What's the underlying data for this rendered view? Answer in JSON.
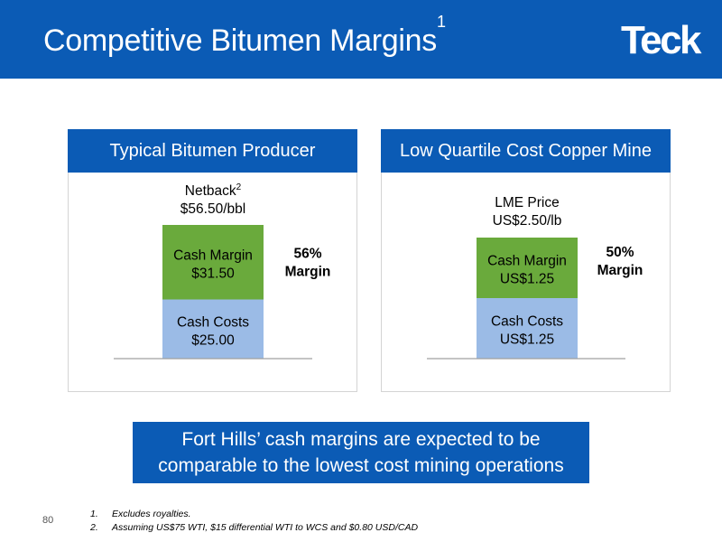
{
  "header": {
    "title": "Competitive Bitumen Margins",
    "title_superscript": "1",
    "logo_text": "Teck",
    "bg_color": "#0b5bb5"
  },
  "panels": [
    {
      "title": "Typical Bitumen Producer",
      "total_label_main": "Netback",
      "total_label_superscript": "2",
      "total_value_label": "$56.50/bbl",
      "margin_pct": "56%",
      "margin_word": "Margin"
    },
    {
      "title": "Low Quartile Cost Copper Mine",
      "total_label_main": "LME Price",
      "total_label_superscript": "",
      "total_value_label": "US$2.50/lb",
      "margin_pct": "50%",
      "margin_word": "Margin"
    }
  ],
  "chart_data": [
    {
      "type": "bar",
      "stacked": true,
      "title": "Typical Bitumen Producer",
      "categories": [
        "Typical Bitumen Producer"
      ],
      "series": [
        {
          "name": "Cash Costs",
          "label_lines": [
            "Cash Costs",
            "$25.00"
          ],
          "values": [
            25.0
          ],
          "color": "#9bbbe6"
        },
        {
          "name": "Cash Margin",
          "label_lines": [
            "Cash Margin",
            "$31.50"
          ],
          "values": [
            31.5
          ],
          "color": "#6aaa3c"
        }
      ],
      "total": 56.5,
      "ylim": [
        0,
        56.5
      ]
    },
    {
      "type": "bar",
      "stacked": true,
      "title": "Low Quartile Cost Copper Mine",
      "categories": [
        "Low Quartile Cost Copper Mine"
      ],
      "series": [
        {
          "name": "Cash Costs",
          "label_lines": [
            "Cash Costs",
            "US$1.25"
          ],
          "values": [
            1.25
          ],
          "color": "#9bbbe6"
        },
        {
          "name": "Cash Margin",
          "label_lines": [
            "Cash Margin",
            "US$1.25"
          ],
          "values": [
            1.25
          ],
          "color": "#6aaa3c"
        }
      ],
      "total": 2.5,
      "ylim": [
        0,
        2.5
      ]
    }
  ],
  "callout": {
    "line1": "Fort Hills’ cash margins are expected to be",
    "line2": "comparable to the lowest cost mining operations"
  },
  "page_number": "80",
  "footnotes": [
    {
      "num": "1.",
      "text": "Excludes royalties."
    },
    {
      "num": "2.",
      "text": "Assuming US$75 WTI, $15 differential WTI to WCS and $0.80 USD/CAD"
    }
  ]
}
